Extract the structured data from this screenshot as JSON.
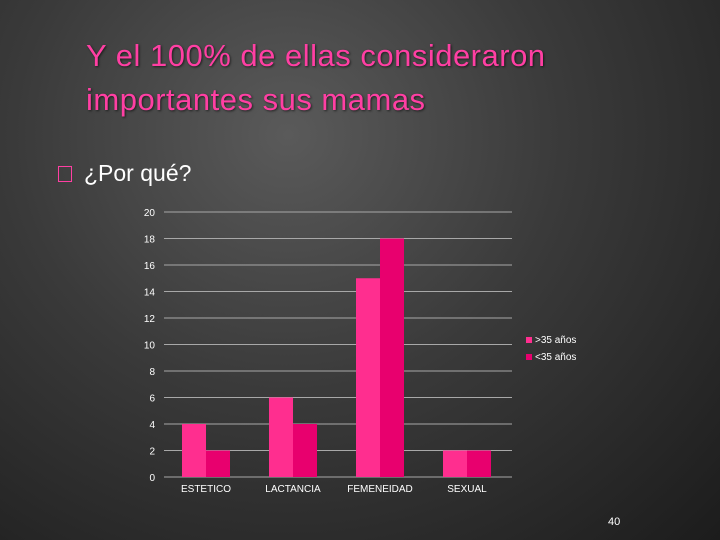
{
  "slide": {
    "title": "Y el 100% de ellas consideraron importantes sus mamas",
    "bullet_text": "¿Por qué?",
    "page_number": "40"
  },
  "colors": {
    "title": "#ff3fa3",
    "series_1": "#ff2e8f",
    "series_2": "#e8006e",
    "gridline": "#a8a8a8",
    "axis_text": "#ffffff"
  },
  "chart_data": {
    "type": "bar",
    "categories": [
      "ESTETICO",
      "LACTANCIA",
      "FEMENEIDAD",
      "SEXUAL"
    ],
    "series": [
      {
        "name": ">35 años",
        "values": [
          4,
          6,
          15,
          2
        ]
      },
      {
        "name": "<35 años",
        "values": [
          2,
          4,
          18,
          2
        ]
      }
    ],
    "ylim": [
      0,
      20
    ],
    "yticks": [
      0,
      2,
      4,
      6,
      8,
      10,
      12,
      14,
      16,
      18,
      20
    ],
    "grid": true,
    "legend": "right",
    "title": "",
    "xlabel": "",
    "ylabel": ""
  }
}
